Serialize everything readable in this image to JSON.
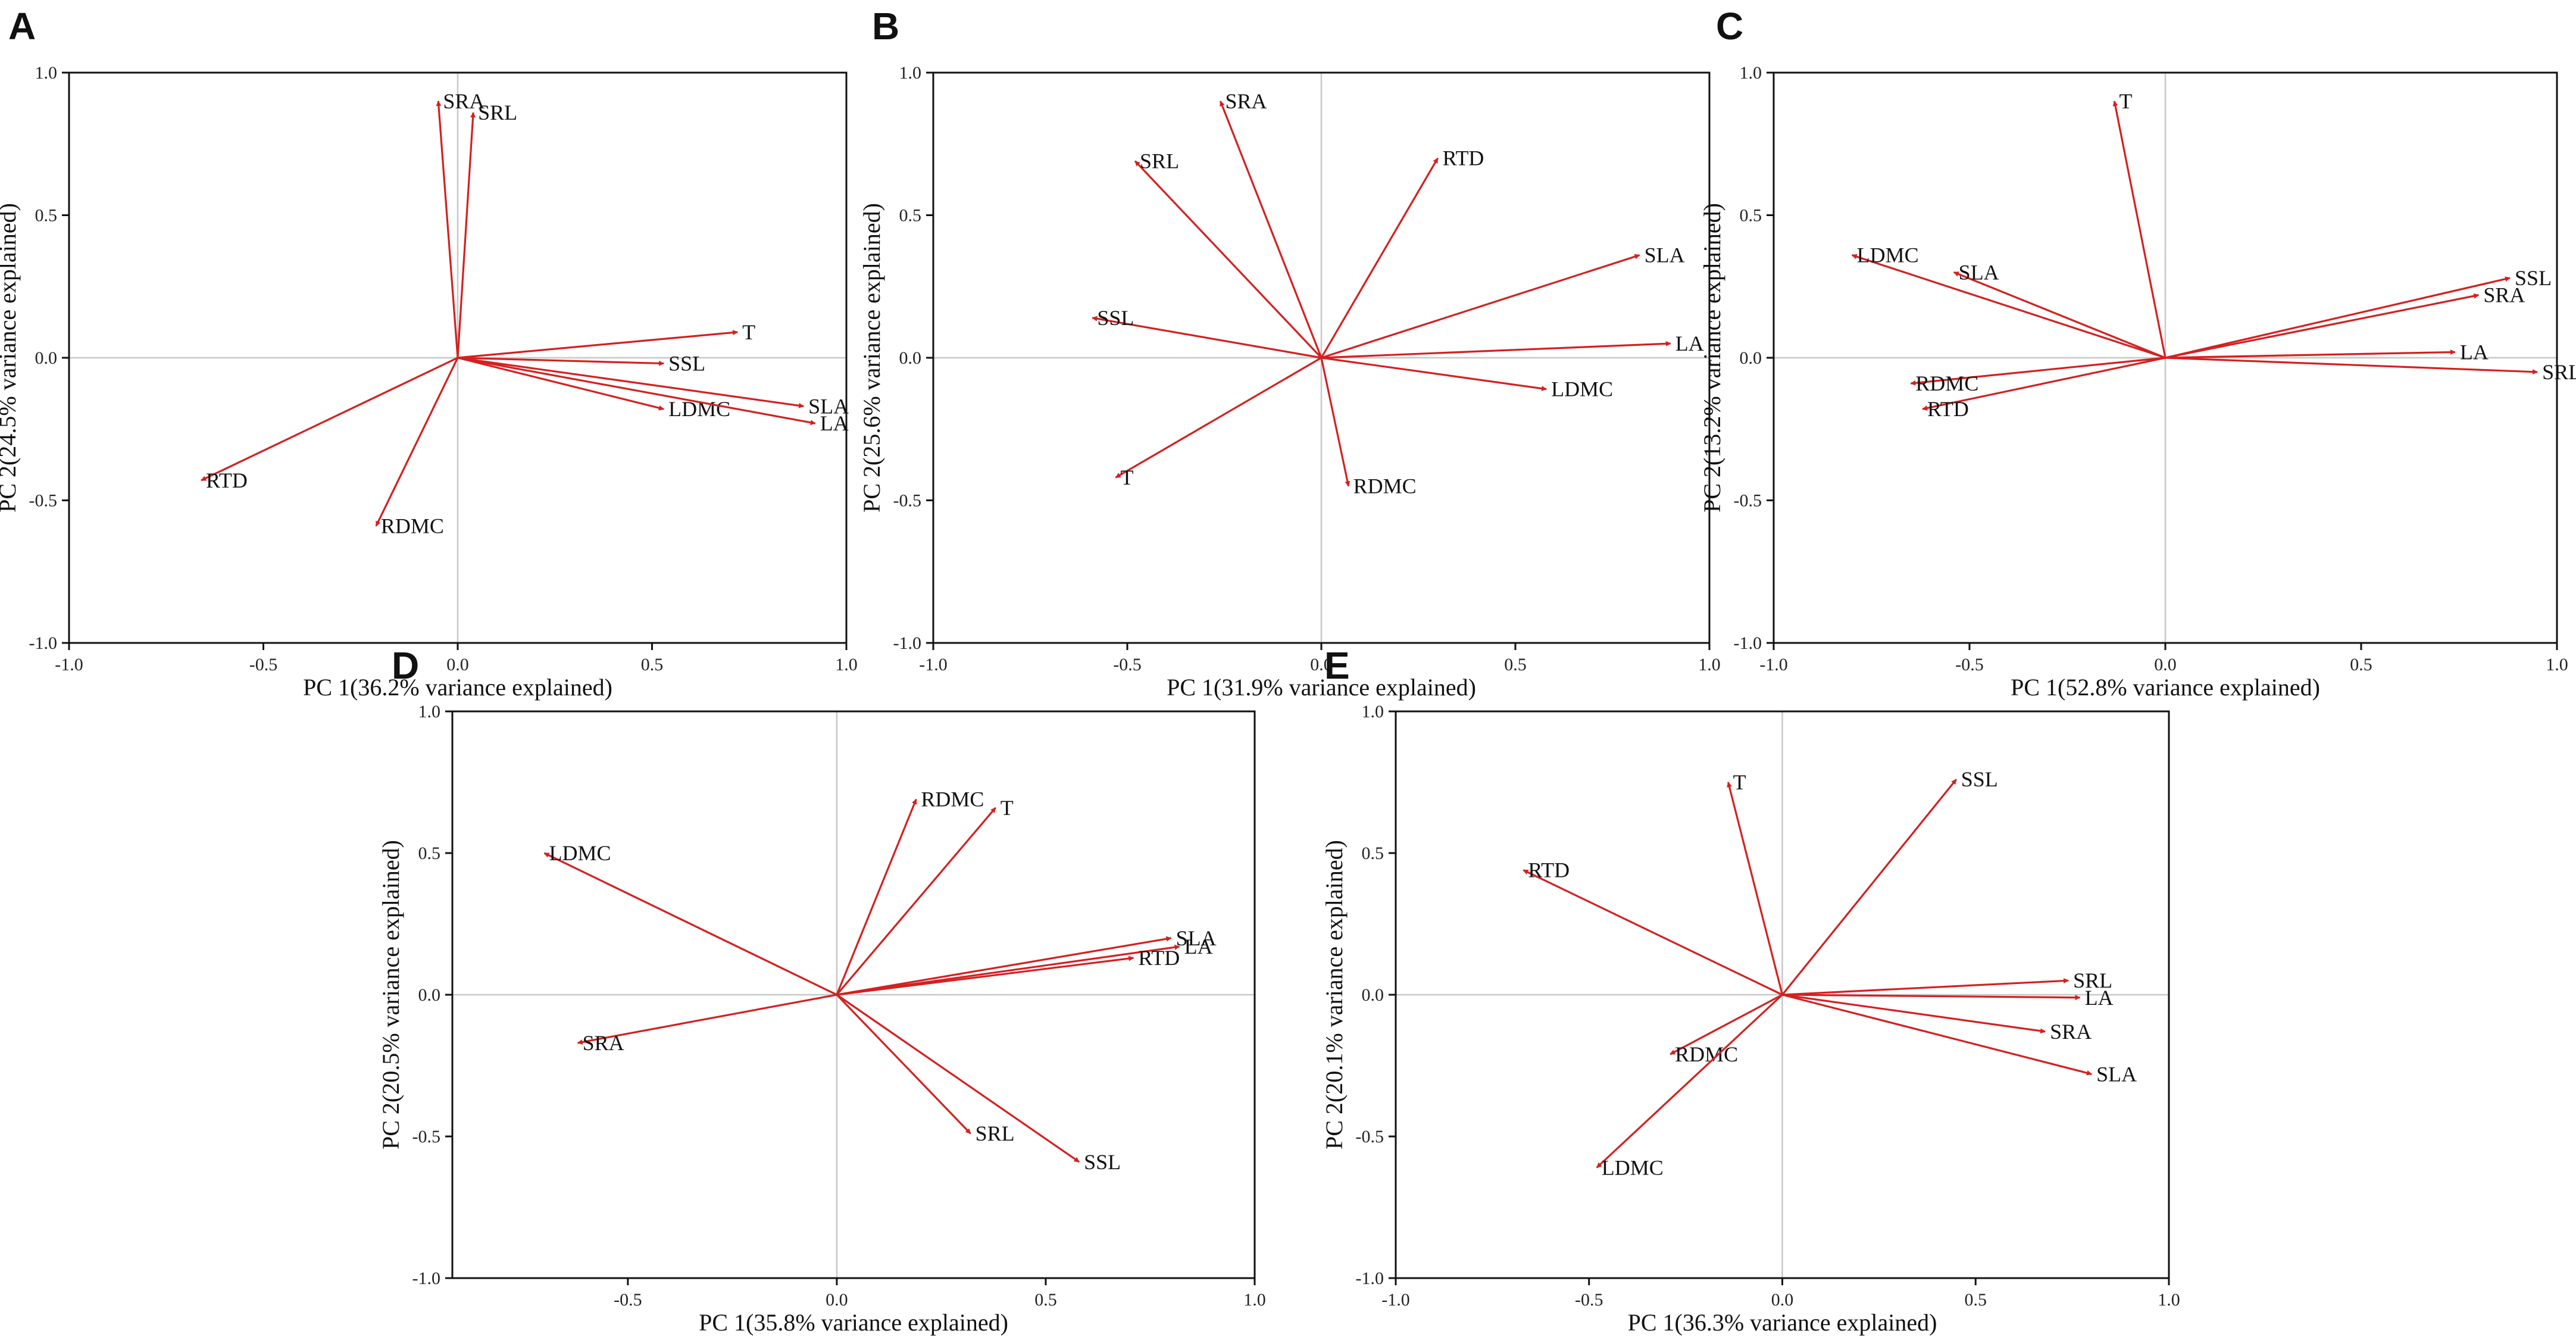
{
  "colors": {
    "vector": "#d42020",
    "axis": "#111111",
    "zero_line": "#c8c8c8"
  },
  "chart_data": [
    {
      "type": "biplot",
      "panel": "A",
      "xlabel": "PC 1(36.2%  variance explained)",
      "ylabel": "PC 2(24.5%  variance explained)",
      "xlim": [
        -1.0,
        1.0
      ],
      "ylim": [
        -1.0,
        1.0
      ],
      "xticks": [
        "-1.0",
        "-0.5",
        "0.0",
        "0.5",
        "1.0"
      ],
      "yticks": [
        "-1.0",
        "-0.5",
        "0.0",
        "0.5",
        "1.0"
      ],
      "vectors": [
        {
          "name": "SRA",
          "x": -0.05,
          "y": 0.9
        },
        {
          "name": "SRL",
          "x": 0.04,
          "y": 0.86
        },
        {
          "name": "T",
          "x": 0.72,
          "y": 0.09
        },
        {
          "name": "SSL",
          "x": 0.53,
          "y": -0.02
        },
        {
          "name": "LDMC",
          "x": 0.53,
          "y": -0.18
        },
        {
          "name": "SLA",
          "x": 0.89,
          "y": -0.17
        },
        {
          "name": "LA",
          "x": 0.92,
          "y": -0.23
        },
        {
          "name": "RTD",
          "x": -0.66,
          "y": -0.43
        },
        {
          "name": "RDMC",
          "x": -0.21,
          "y": -0.59
        }
      ]
    },
    {
      "type": "biplot",
      "panel": "B",
      "xlabel": "PC 1(31.9%  variance explained)",
      "ylabel": "PC 2(25.6%  variance explained)",
      "xlim": [
        -1.0,
        1.0
      ],
      "ylim": [
        -1.0,
        1.0
      ],
      "xticks": [
        "-1.0",
        "-0.5",
        "0.0",
        "0.5",
        "1.0"
      ],
      "yticks": [
        "-1.0",
        "-0.5",
        "0.0",
        "0.5",
        "1.0"
      ],
      "vectors": [
        {
          "name": "SRA",
          "x": -0.26,
          "y": 0.9
        },
        {
          "name": "SRL",
          "x": -0.48,
          "y": 0.69
        },
        {
          "name": "RTD",
          "x": 0.3,
          "y": 0.7
        },
        {
          "name": "SSL",
          "x": -0.59,
          "y": 0.14
        },
        {
          "name": "SLA",
          "x": 0.82,
          "y": 0.36
        },
        {
          "name": "LA",
          "x": 0.9,
          "y": 0.05
        },
        {
          "name": "LDMC",
          "x": 0.58,
          "y": -0.11
        },
        {
          "name": "T",
          "x": -0.53,
          "y": -0.42
        },
        {
          "name": "RDMC",
          "x": 0.07,
          "y": -0.45
        }
      ]
    },
    {
      "type": "biplot",
      "panel": "C",
      "xlabel": "PC 1(52.8%  variance explained)",
      "ylabel": "PC 2(13.2%  variance explained)",
      "xlim": [
        -1.0,
        1.0
      ],
      "ylim": [
        -1.0,
        1.0
      ],
      "xticks": [
        "-1.0",
        "-0.5",
        "0.0",
        "0.5",
        "1.0"
      ],
      "yticks": [
        "-1.0",
        "-0.5",
        "0.0",
        "0.5",
        "1.0"
      ],
      "vectors": [
        {
          "name": "T",
          "x": -0.13,
          "y": 0.9
        },
        {
          "name": "LDMC",
          "x": -0.8,
          "y": 0.36
        },
        {
          "name": "SLA",
          "x": -0.54,
          "y": 0.3
        },
        {
          "name": "SSL",
          "x": 0.88,
          "y": 0.28
        },
        {
          "name": "SRA",
          "x": 0.8,
          "y": 0.22
        },
        {
          "name": "LA",
          "x": 0.74,
          "y": 0.02
        },
        {
          "name": "SRL",
          "x": 0.95,
          "y": -0.05
        },
        {
          "name": "RDMC",
          "x": -0.65,
          "y": -0.09
        },
        {
          "name": "RTD",
          "x": -0.62,
          "y": -0.18
        }
      ]
    },
    {
      "type": "biplot",
      "panel": "D",
      "xlabel": "PC 1(35.8%  variance explained)",
      "ylabel": "PC 2(20.5%  variance explained)",
      "xlim": [
        -0.92,
        1.0
      ],
      "ylim": [
        -1.0,
        1.0
      ],
      "xticks": [
        "-0.5",
        "0.0",
        "0.5",
        "1.0"
      ],
      "yticks": [
        "-1.0",
        "-0.5",
        "0.0",
        "0.5",
        "1.0"
      ],
      "vectors": [
        {
          "name": "RDMC",
          "x": 0.19,
          "y": 0.69
        },
        {
          "name": "T",
          "x": 0.38,
          "y": 0.66
        },
        {
          "name": "LDMC",
          "x": -0.7,
          "y": 0.5
        },
        {
          "name": "SLA",
          "x": 0.8,
          "y": 0.2
        },
        {
          "name": "LA",
          "x": 0.82,
          "y": 0.17
        },
        {
          "name": "RTD",
          "x": 0.71,
          "y": 0.13
        },
        {
          "name": "SRA",
          "x": -0.62,
          "y": -0.17
        },
        {
          "name": "SRL",
          "x": 0.32,
          "y": -0.49
        },
        {
          "name": "SSL",
          "x": 0.58,
          "y": -0.59
        }
      ]
    },
    {
      "type": "biplot",
      "panel": "E",
      "xlabel": "PC 1(36.3%  variance explained)",
      "ylabel": "PC 2(20.1%  variance explained)",
      "xlim": [
        -1.0,
        1.0
      ],
      "ylim": [
        -1.0,
        1.0
      ],
      "xticks": [
        "-1.0",
        "-0.5",
        "0.0",
        "0.5",
        "1.0"
      ],
      "yticks": [
        "-1.0",
        "-0.5",
        "0.0",
        "0.5",
        "1.0"
      ],
      "vectors": [
        {
          "name": "T",
          "x": -0.14,
          "y": 0.75
        },
        {
          "name": "SSL",
          "x": 0.45,
          "y": 0.76
        },
        {
          "name": "RTD",
          "x": -0.67,
          "y": 0.44
        },
        {
          "name": "SRL",
          "x": 0.74,
          "y": 0.05
        },
        {
          "name": "LA",
          "x": 0.77,
          "y": -0.01
        },
        {
          "name": "SRA",
          "x": 0.68,
          "y": -0.13
        },
        {
          "name": "SLA",
          "x": 0.8,
          "y": -0.28
        },
        {
          "name": "RDMC",
          "x": -0.29,
          "y": -0.21
        },
        {
          "name": "LDMC",
          "x": -0.48,
          "y": -0.61
        }
      ]
    }
  ]
}
